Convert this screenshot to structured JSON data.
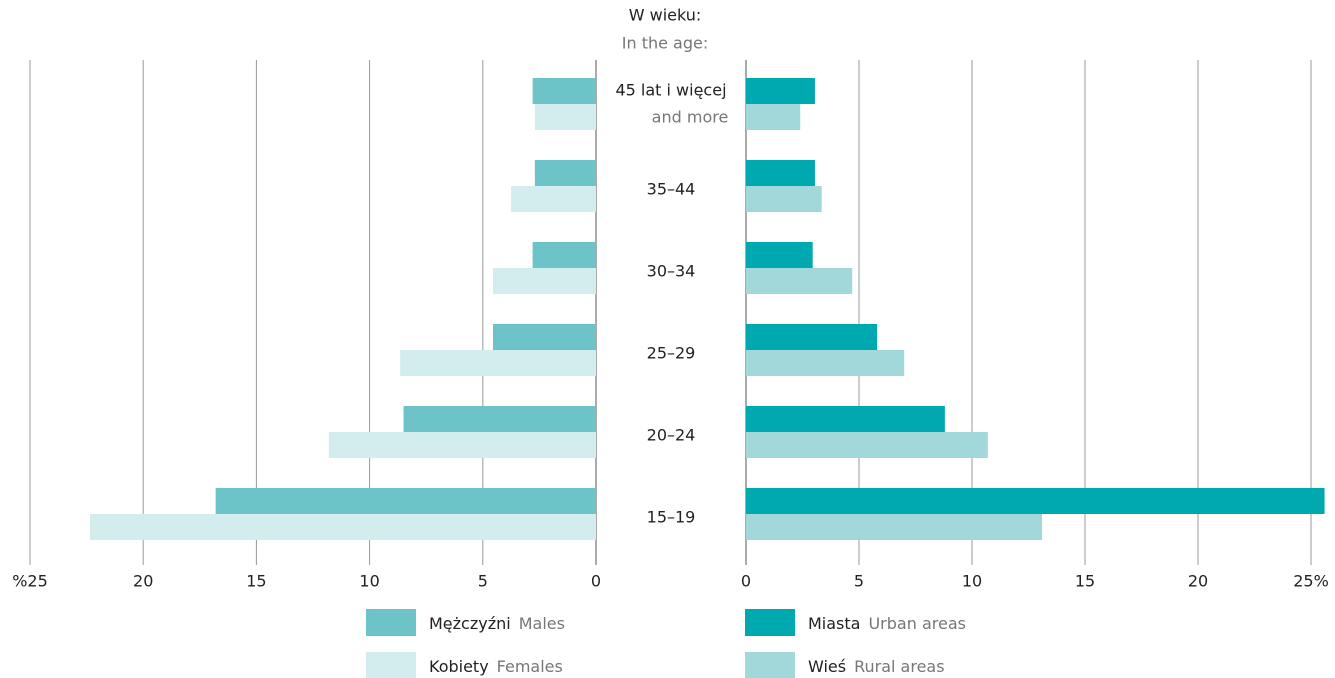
{
  "chart_data": {
    "type": "butterfly-bar",
    "title": "W wieku:",
    "subtitle": "In the age:",
    "categories": [
      "45 lat i więcej",
      "35–44",
      "30–34",
      "25–29",
      "20–24",
      "15–19"
    ],
    "category_notes": [
      "and more",
      null,
      null,
      null,
      null,
      null
    ],
    "grid": true,
    "left": {
      "xlim": [
        0,
        25
      ],
      "xticks": [
        {
          "value": 25,
          "label": "%25"
        },
        20,
        15,
        10,
        5,
        0
      ],
      "series": [
        {
          "name": "Mężczyźni",
          "name_en": "Males",
          "color": "#6cc4c8",
          "values": [
            2.8,
            2.7,
            2.8,
            4.55,
            8.5,
            16.8
          ]
        },
        {
          "name": "Kobiety",
          "name_en": "Females",
          "color": "#d3ecee",
          "values": [
            2.7,
            3.75,
            4.55,
            8.65,
            11.8,
            22.35
          ]
        }
      ]
    },
    "right": {
      "xlim": [
        0,
        25
      ],
      "xticks": [
        0,
        5,
        10,
        15,
        20,
        {
          "value": 25,
          "label": "25%"
        }
      ],
      "series": [
        {
          "name": "Miasta",
          "name_en": "Urban areas",
          "color": "#00a9b0",
          "values": [
            3.05,
            3.05,
            2.95,
            5.8,
            8.8,
            25.6
          ]
        },
        {
          "name": "Wieś",
          "name_en": "Rural areas",
          "color": "#a3d8db",
          "values": [
            2.4,
            3.35,
            4.7,
            7.0,
            10.7,
            13.1
          ]
        }
      ]
    }
  }
}
